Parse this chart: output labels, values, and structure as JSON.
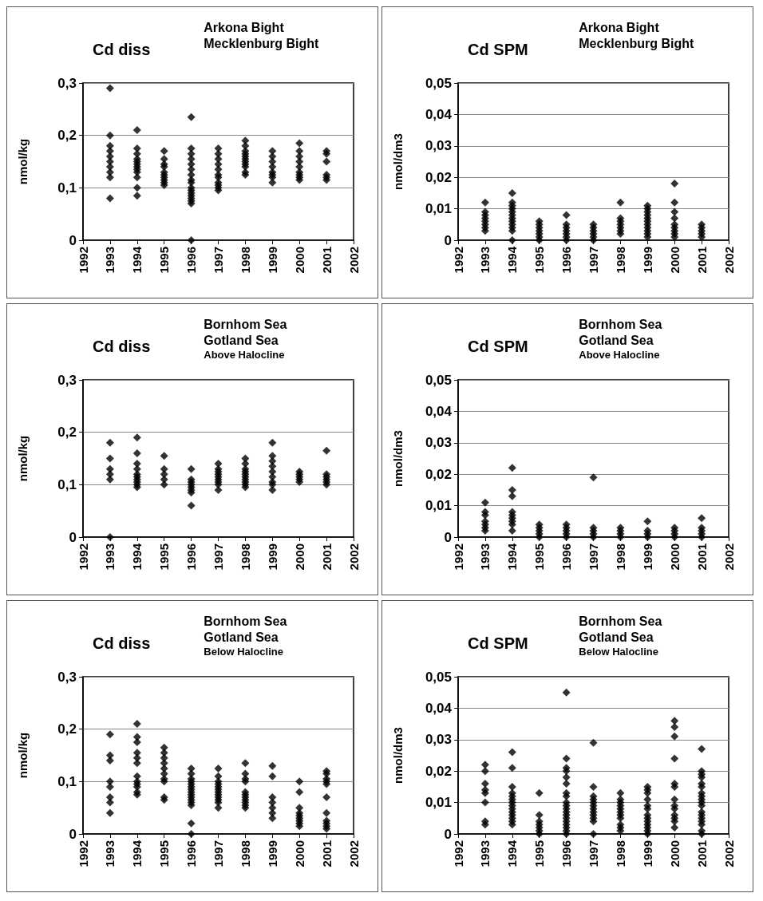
{
  "chart_data": [
    {
      "type": "scatter",
      "title": "Cd diss",
      "subtitle": "Arkona Bight\nMecklenburg Bight",
      "ylabel": "nmol/kg",
      "marker": "diamond",
      "grid": "y",
      "xlim": [
        1992,
        2002
      ],
      "xticks": [
        1992,
        1993,
        1994,
        1995,
        1996,
        1997,
        1998,
        1999,
        2000,
        2001,
        2002
      ],
      "ylim": [
        0,
        0.3
      ],
      "yticks": [
        {
          "value": 0,
          "label": "0"
        },
        {
          "value": 0.1,
          "label": "0,1"
        },
        {
          "value": 0.2,
          "label": "0,2"
        },
        {
          "value": 0.3,
          "label": "0,3"
        }
      ],
      "series": [
        {
          "color": "#000000",
          "x": [
            1993,
            1993,
            1993,
            1993,
            1993,
            1993,
            1993,
            1993,
            1993,
            1993,
            1994,
            1994,
            1994,
            1994,
            1994,
            1994,
            1994,
            1994,
            1994,
            1994,
            1994,
            1994,
            1995,
            1995,
            1995,
            1995,
            1995,
            1995,
            1995,
            1995,
            1995,
            1995,
            1996,
            1996,
            1996,
            1996,
            1996,
            1996,
            1996,
            1996,
            1996,
            1996,
            1996,
            1996,
            1996,
            1996,
            1996,
            1996,
            1996,
            1997,
            1997,
            1997,
            1997,
            1997,
            1997,
            1997,
            1997,
            1997,
            1997,
            1997,
            1998,
            1998,
            1998,
            1998,
            1998,
            1998,
            1998,
            1998,
            1998,
            1998,
            1998,
            1999,
            1999,
            1999,
            1999,
            1999,
            1999,
            1999,
            1999,
            2000,
            2000,
            2000,
            2000,
            2000,
            2000,
            2000,
            2000,
            2000,
            2001,
            2001,
            2001,
            2001,
            2001,
            2001
          ],
          "values": [
            0.29,
            0.2,
            0.18,
            0.17,
            0.16,
            0.15,
            0.14,
            0.13,
            0.12,
            0.08,
            0.21,
            0.175,
            0.165,
            0.155,
            0.15,
            0.145,
            0.14,
            0.135,
            0.13,
            0.12,
            0.1,
            0.085,
            0.17,
            0.155,
            0.145,
            0.14,
            0.13,
            0.125,
            0.12,
            0.115,
            0.11,
            0.105,
            0.235,
            0.175,
            0.165,
            0.155,
            0.145,
            0.135,
            0.125,
            0.115,
            0.11,
            0.1,
            0.095,
            0.09,
            0.085,
            0.08,
            0.075,
            0.07,
            0,
            0.175,
            0.165,
            0.155,
            0.145,
            0.135,
            0.125,
            0.12,
            0.11,
            0.105,
            0.1,
            0.095,
            0.19,
            0.18,
            0.17,
            0.165,
            0.16,
            0.155,
            0.15,
            0.145,
            0.14,
            0.13,
            0.125,
            0.17,
            0.16,
            0.15,
            0.14,
            0.13,
            0.125,
            0.12,
            0.11,
            0.185,
            0.17,
            0.16,
            0.15,
            0.14,
            0.13,
            0.125,
            0.12,
            0.115,
            0.17,
            0.165,
            0.15,
            0.125,
            0.12,
            0.115
          ]
        }
      ]
    },
    {
      "type": "scatter",
      "title": "Cd SPM",
      "subtitle": "Arkona Bight\nMecklenburg Bight",
      "ylabel": "nmol/dm3",
      "marker": "diamond",
      "grid": "y",
      "xlim": [
        1992,
        2002
      ],
      "xticks": [
        1992,
        1993,
        1994,
        1995,
        1996,
        1997,
        1998,
        1999,
        2000,
        2001,
        2002
      ],
      "ylim": [
        0,
        0.05
      ],
      "yticks": [
        {
          "value": 0,
          "label": "0"
        },
        {
          "value": 0.01,
          "label": "0,01"
        },
        {
          "value": 0.02,
          "label": "0,02"
        },
        {
          "value": 0.03,
          "label": "0,03"
        },
        {
          "value": 0.04,
          "label": "0,04"
        },
        {
          "value": 0.05,
          "label": "0,05"
        }
      ],
      "series": [
        {
          "color": "#000000",
          "x": [
            1993,
            1993,
            1993,
            1993,
            1993,
            1993,
            1993,
            1993,
            1994,
            1994,
            1994,
            1994,
            1994,
            1994,
            1994,
            1994,
            1994,
            1994,
            1994,
            1994,
            1995,
            1995,
            1995,
            1995,
            1995,
            1995,
            1995,
            1996,
            1996,
            1996,
            1996,
            1996,
            1996,
            1996,
            1997,
            1997,
            1997,
            1997,
            1997,
            1997,
            1998,
            1998,
            1998,
            1998,
            1998,
            1998,
            1998,
            1999,
            1999,
            1999,
            1999,
            1999,
            1999,
            1999,
            1999,
            1999,
            1999,
            1999,
            2000,
            2000,
            2000,
            2000,
            2000,
            2000,
            2000,
            2000,
            2000,
            2001,
            2001,
            2001,
            2001,
            2001
          ],
          "values": [
            0.012,
            0.009,
            0.008,
            0.007,
            0.006,
            0.005,
            0.004,
            0.003,
            0.015,
            0.012,
            0.011,
            0.01,
            0.009,
            0.008,
            0.007,
            0.006,
            0.005,
            0.004,
            0.003,
            0,
            0.006,
            0.005,
            0.004,
            0.003,
            0.002,
            0.001,
            0,
            0.008,
            0.005,
            0.004,
            0.003,
            0.002,
            0.001,
            0,
            0.005,
            0.004,
            0.003,
            0.002,
            0.001,
            0,
            0.012,
            0.007,
            0.006,
            0.005,
            0.004,
            0.003,
            0.002,
            0.011,
            0.01,
            0.009,
            0.008,
            0.007,
            0.006,
            0.005,
            0.004,
            0.003,
            0.002,
            0.001,
            0.018,
            0.012,
            0.009,
            0.007,
            0.005,
            0.004,
            0.003,
            0.002,
            0.001,
            0.005,
            0.004,
            0.003,
            0.002,
            0.001
          ]
        }
      ]
    },
    {
      "type": "scatter",
      "title": "Cd diss",
      "subtitle": "Bornhom Sea\nGotland Sea",
      "annotations": [
        "Above Halocline"
      ],
      "ylabel": "nmol/kg",
      "marker": "diamond",
      "grid": "y",
      "xlim": [
        1992,
        2002
      ],
      "xticks": [
        1992,
        1993,
        1994,
        1995,
        1996,
        1997,
        1998,
        1999,
        2000,
        2001,
        2002
      ],
      "ylim": [
        0,
        0.3
      ],
      "yticks": [
        {
          "value": 0,
          "label": "0"
        },
        {
          "value": 0.1,
          "label": "0,1"
        },
        {
          "value": 0.2,
          "label": "0,2"
        },
        {
          "value": 0.3,
          "label": "0,3"
        }
      ],
      "series": [
        {
          "color": "#000000",
          "x": [
            1993,
            1993,
            1993,
            1993,
            1993,
            1993,
            1994,
            1994,
            1994,
            1994,
            1994,
            1994,
            1994,
            1994,
            1994,
            1994,
            1995,
            1995,
            1995,
            1995,
            1995,
            1996,
            1996,
            1996,
            1996,
            1996,
            1996,
            1996,
            1996,
            1997,
            1997,
            1997,
            1997,
            1997,
            1997,
            1997,
            1997,
            1997,
            1998,
            1998,
            1998,
            1998,
            1998,
            1998,
            1998,
            1998,
            1998,
            1998,
            1999,
            1999,
            1999,
            1999,
            1999,
            1999,
            1999,
            1999,
            1999,
            2000,
            2000,
            2000,
            2000,
            2000,
            2001,
            2001,
            2001,
            2001,
            2001,
            2001
          ],
          "values": [
            0.18,
            0.15,
            0.13,
            0.12,
            0.11,
            0,
            0.19,
            0.16,
            0.14,
            0.13,
            0.12,
            0.115,
            0.11,
            0.105,
            0.1,
            0.095,
            0.155,
            0.13,
            0.12,
            0.11,
            0.1,
            0.13,
            0.11,
            0.105,
            0.1,
            0.095,
            0.09,
            0.085,
            0.06,
            0.14,
            0.13,
            0.125,
            0.12,
            0.115,
            0.11,
            0.105,
            0.1,
            0.09,
            0.15,
            0.14,
            0.13,
            0.125,
            0.12,
            0.115,
            0.11,
            0.105,
            0.1,
            0.095,
            0.18,
            0.155,
            0.145,
            0.135,
            0.125,
            0.115,
            0.105,
            0.1,
            0.09,
            0.125,
            0.12,
            0.115,
            0.11,
            0.105,
            0.165,
            0.12,
            0.115,
            0.11,
            0.105,
            0.1
          ]
        }
      ]
    },
    {
      "type": "scatter",
      "title": "Cd SPM",
      "subtitle": "Bornhom Sea\nGotland Sea",
      "annotations": [
        "Above Halocline"
      ],
      "ylabel": "nmol/dm3",
      "marker": "diamond",
      "grid": "y",
      "xlim": [
        1992,
        2002
      ],
      "xticks": [
        1992,
        1993,
        1994,
        1995,
        1996,
        1997,
        1998,
        1999,
        2000,
        2001,
        2002
      ],
      "ylim": [
        0,
        0.05
      ],
      "yticks": [
        {
          "value": 0,
          "label": "0"
        },
        {
          "value": 0.01,
          "label": "0,01"
        },
        {
          "value": 0.02,
          "label": "0,02"
        },
        {
          "value": 0.03,
          "label": "0,03"
        },
        {
          "value": 0.04,
          "label": "0,04"
        },
        {
          "value": 0.05,
          "label": "0,05"
        }
      ],
      "series": [
        {
          "color": "#000000",
          "x": [
            1993,
            1993,
            1993,
            1993,
            1993,
            1993,
            1993,
            1994,
            1994,
            1994,
            1994,
            1994,
            1994,
            1994,
            1994,
            1994,
            1995,
            1995,
            1995,
            1995,
            1995,
            1996,
            1996,
            1996,
            1996,
            1996,
            1997,
            1997,
            1997,
            1997,
            1997,
            1998,
            1998,
            1998,
            1998,
            1999,
            1999,
            1999,
            1999,
            2000,
            2000,
            2000,
            2000,
            2001,
            2001,
            2001,
            2001,
            2001
          ],
          "values": [
            0.011,
            0.008,
            0.007,
            0.005,
            0.004,
            0.003,
            0.002,
            0.022,
            0.015,
            0.013,
            0.008,
            0.007,
            0.006,
            0.005,
            0.004,
            0.002,
            0.004,
            0.003,
            0.002,
            0.001,
            0,
            0.004,
            0.003,
            0.002,
            0.001,
            0,
            0.019,
            0.003,
            0.002,
            0.001,
            0,
            0.003,
            0.002,
            0.001,
            0,
            0.005,
            0.002,
            0.001,
            0,
            0.003,
            0.002,
            0.001,
            0,
            0.006,
            0.003,
            0.002,
            0.001,
            0
          ]
        }
      ]
    },
    {
      "type": "scatter",
      "title": "Cd diss",
      "subtitle": "Bornhom Sea\nGotland Sea",
      "annotations": [
        "Below Halocline"
      ],
      "ylabel": "nmol/kg",
      "marker": "diamond",
      "grid": "y",
      "xlim": [
        1992,
        2002
      ],
      "xticks": [
        1992,
        1993,
        1994,
        1995,
        1996,
        1997,
        1998,
        1999,
        2000,
        2001,
        2002
      ],
      "ylim": [
        0,
        0.3
      ],
      "yticks": [
        {
          "value": 0,
          "label": "0"
        },
        {
          "value": 0.1,
          "label": "0,1"
        },
        {
          "value": 0.2,
          "label": "0,2"
        },
        {
          "value": 0.3,
          "label": "0,3"
        }
      ],
      "series": [
        {
          "color": "#000000",
          "x": [
            1993,
            1993,
            1993,
            1993,
            1993,
            1993,
            1993,
            1993,
            1994,
            1994,
            1994,
            1994,
            1994,
            1994,
            1994,
            1994,
            1994,
            1994,
            1994,
            1994,
            1995,
            1995,
            1995,
            1995,
            1995,
            1995,
            1995,
            1995,
            1995,
            1995,
            1996,
            1996,
            1996,
            1996,
            1996,
            1996,
            1996,
            1996,
            1996,
            1996,
            1996,
            1996,
            1996,
            1996,
            1996,
            1997,
            1997,
            1997,
            1997,
            1997,
            1997,
            1997,
            1997,
            1997,
            1997,
            1997,
            1997,
            1998,
            1998,
            1998,
            1998,
            1998,
            1998,
            1998,
            1998,
            1998,
            1998,
            1998,
            1999,
            1999,
            1999,
            1999,
            1999,
            1999,
            1999,
            2000,
            2000,
            2000,
            2000,
            2000,
            2000,
            2000,
            2000,
            2000,
            2001,
            2001,
            2001,
            2001,
            2001,
            2001,
            2001,
            2001,
            2001,
            2001,
            2001
          ],
          "values": [
            0.19,
            0.15,
            0.14,
            0.1,
            0.09,
            0.07,
            0.06,
            0.04,
            0.21,
            0.185,
            0.175,
            0.155,
            0.145,
            0.135,
            0.11,
            0.1,
            0.095,
            0.09,
            0.08,
            0.075,
            0.165,
            0.155,
            0.145,
            0.135,
            0.125,
            0.115,
            0.105,
            0.1,
            0.07,
            0.065,
            0.125,
            0.115,
            0.105,
            0.1,
            0.095,
            0.09,
            0.085,
            0.08,
            0.075,
            0.07,
            0.065,
            0.06,
            0.055,
            0.02,
            0,
            0.125,
            0.11,
            0.1,
            0.095,
            0.09,
            0.085,
            0.08,
            0.075,
            0.07,
            0.065,
            0.06,
            0.05,
            0.135,
            0.115,
            0.105,
            0.1,
            0.08,
            0.075,
            0.07,
            0.065,
            0.06,
            0.055,
            0.05,
            0.13,
            0.11,
            0.07,
            0.06,
            0.05,
            0.04,
            0.03,
            0.1,
            0.08,
            0.05,
            0.04,
            0.035,
            0.03,
            0.025,
            0.02,
            0.015,
            0.12,
            0.115,
            0.105,
            0.1,
            0.095,
            0.07,
            0.04,
            0.025,
            0.02,
            0.015,
            0.01
          ]
        }
      ]
    },
    {
      "type": "scatter",
      "title": "Cd SPM",
      "subtitle": "Bornhom Sea\nGotland Sea",
      "annotations": [
        "Below Halocline"
      ],
      "ylabel": "nmol/dm3",
      "marker": "diamond",
      "grid": "y",
      "xlim": [
        1992,
        2002
      ],
      "xticks": [
        1992,
        1993,
        1994,
        1995,
        1996,
        1997,
        1998,
        1999,
        2000,
        2001,
        2002
      ],
      "ylim": [
        0,
        0.05
      ],
      "yticks": [
        {
          "value": 0,
          "label": "0"
        },
        {
          "value": 0.01,
          "label": "0,01"
        },
        {
          "value": 0.02,
          "label": "0,02"
        },
        {
          "value": 0.03,
          "label": "0,03"
        },
        {
          "value": 0.04,
          "label": "0,04"
        },
        {
          "value": 0.05,
          "label": "0,05"
        }
      ],
      "series": [
        {
          "color": "#000000",
          "x": [
            1993,
            1993,
            1993,
            1993,
            1993,
            1993,
            1993,
            1993,
            1994,
            1994,
            1994,
            1994,
            1994,
            1994,
            1994,
            1994,
            1994,
            1994,
            1994,
            1994,
            1994,
            1994,
            1995,
            1995,
            1995,
            1995,
            1995,
            1995,
            1995,
            1996,
            1996,
            1996,
            1996,
            1996,
            1996,
            1996,
            1996,
            1996,
            1996,
            1996,
            1996,
            1996,
            1996,
            1996,
            1996,
            1996,
            1996,
            1996,
            1997,
            1997,
            1997,
            1997,
            1997,
            1997,
            1997,
            1997,
            1997,
            1997,
            1997,
            1997,
            1998,
            1998,
            1998,
            1998,
            1998,
            1998,
            1998,
            1998,
            1998,
            1998,
            1998,
            1999,
            1999,
            1999,
            1999,
            1999,
            1999,
            1999,
            1999,
            1999,
            1999,
            1999,
            1999,
            1999,
            2000,
            2000,
            2000,
            2000,
            2000,
            2000,
            2000,
            2000,
            2000,
            2000,
            2000,
            2000,
            2000,
            2001,
            2001,
            2001,
            2001,
            2001,
            2001,
            2001,
            2001,
            2001,
            2001,
            2001,
            2001,
            2001,
            2001,
            2001,
            2001,
            2001,
            2001
          ],
          "values": [
            0.022,
            0.02,
            0.016,
            0.014,
            0.013,
            0.01,
            0.004,
            0.003,
            0.026,
            0.021,
            0.015,
            0.013,
            0.012,
            0.011,
            0.01,
            0.009,
            0.008,
            0.007,
            0.006,
            0.005,
            0.004,
            0.003,
            0.013,
            0.006,
            0.004,
            0.003,
            0.002,
            0.001,
            0,
            0.045,
            0.024,
            0.021,
            0.02,
            0.018,
            0.016,
            0.013,
            0.012,
            0.01,
            0.009,
            0.008,
            0.007,
            0.006,
            0.005,
            0.004,
            0.003,
            0.002,
            0.001,
            0,
            0.029,
            0.015,
            0.012,
            0.011,
            0.01,
            0.009,
            0.008,
            0.007,
            0.006,
            0.005,
            0.004,
            0,
            0.013,
            0.011,
            0.01,
            0.009,
            0.008,
            0.007,
            0.006,
            0.005,
            0.003,
            0.002,
            0.001,
            0.015,
            0.014,
            0.013,
            0.011,
            0.009,
            0.008,
            0.006,
            0.005,
            0.004,
            0.003,
            0.002,
            0.001,
            0,
            0.036,
            0.034,
            0.031,
            0.024,
            0.016,
            0.015,
            0.011,
            0.009,
            0.008,
            0.006,
            0.005,
            0.004,
            0.002,
            0.027,
            0.02,
            0.019,
            0.018,
            0.016,
            0.015,
            0.013,
            0.012,
            0.011,
            0.01,
            0.009,
            0.007,
            0.006,
            0.005,
            0.004,
            0.003,
            0.001,
            0
          ]
        }
      ]
    }
  ]
}
